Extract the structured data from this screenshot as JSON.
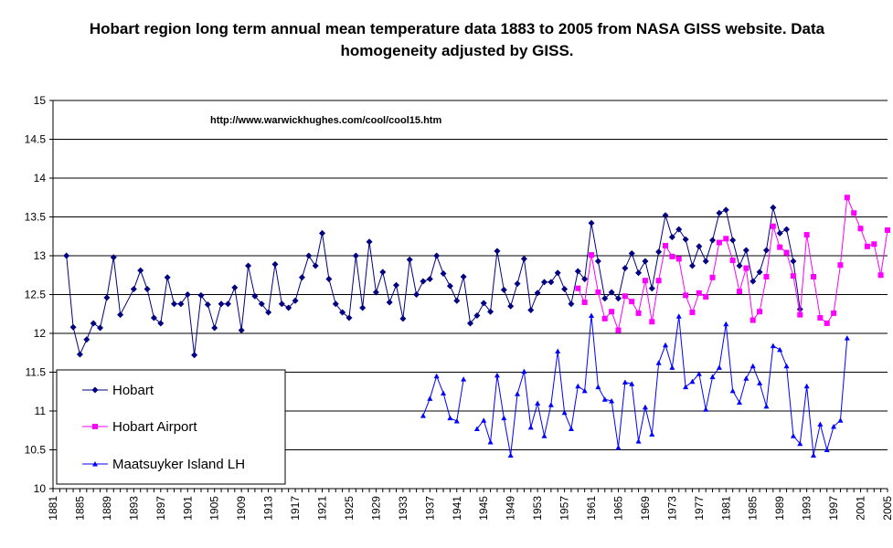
{
  "chart_data": {
    "type": "line",
    "title": "Hobart region long term annual mean temperature data 1883 to 2005 from NASA GISS website.  Data homogeneity adjusted by GISS.",
    "annotation": "http://www.warwickhughes.com/cool/cool15.htm",
    "xlabel": "",
    "ylabel": "",
    "xlim": [
      1881,
      2005
    ],
    "ylim": [
      10,
      15
    ],
    "y_ticks": [
      10,
      10.5,
      11,
      11.5,
      12,
      12.5,
      13,
      13.5,
      14,
      14.5,
      15
    ],
    "y_tick_labels": [
      "10",
      "10.5",
      "11",
      "11.5",
      "12",
      "12.5",
      "13",
      "13.5",
      "14",
      "14.5",
      "15"
    ],
    "x_tick_labels": [
      "1881",
      "1885",
      "1889",
      "1893",
      "1897",
      "1901",
      "1905",
      "1909",
      "1913",
      "1917",
      "1921",
      "1925",
      "1929",
      "1933",
      "1937",
      "1941",
      "1945",
      "1949",
      "1953",
      "1957",
      "1961",
      "1965",
      "1969",
      "1973",
      "1977",
      "1981",
      "1985",
      "1989",
      "1993",
      "1997",
      "2001",
      "2005"
    ],
    "grid": "horizontal",
    "legend_position": "lower-left",
    "series": [
      {
        "name": "Hobart",
        "color": "#000080",
        "marker": "diamond",
        "x": [
          1883,
          1884,
          1885,
          1886,
          1887,
          1888,
          1889,
          1890,
          1891,
          1893,
          1894,
          1895,
          1896,
          1897,
          1898,
          1899,
          1900,
          1901,
          1902,
          1903,
          1904,
          1905,
          1906,
          1907,
          1908,
          1909,
          1910,
          1911,
          1912,
          1913,
          1914,
          1915,
          1916,
          1917,
          1918,
          1919,
          1920,
          1921,
          1922,
          1923,
          1924,
          1925,
          1926,
          1927,
          1928,
          1929,
          1930,
          1931,
          1932,
          1933,
          1934,
          1935,
          1936,
          1937,
          1938,
          1939,
          1940,
          1941,
          1942,
          1943,
          1944,
          1945,
          1946,
          1947,
          1948,
          1949,
          1950,
          1951,
          1952,
          1953,
          1954,
          1955,
          1956,
          1957,
          1958,
          1959,
          1960,
          1961,
          1962,
          1963,
          1964,
          1965,
          1966,
          1967,
          1968,
          1969,
          1970,
          1971,
          1972,
          1973,
          1974,
          1975,
          1976,
          1977,
          1978,
          1979,
          1980,
          1981,
          1982,
          1983,
          1984,
          1985,
          1986,
          1987,
          1988,
          1989,
          1990,
          1991,
          1992
        ],
        "values": [
          13.0,
          12.08,
          11.73,
          11.92,
          12.13,
          12.07,
          12.46,
          12.98,
          12.24,
          12.57,
          12.81,
          12.57,
          12.2,
          12.13,
          12.72,
          12.38,
          12.38,
          12.5,
          11.72,
          12.49,
          12.37,
          12.07,
          12.38,
          12.38,
          12.59,
          12.04,
          12.87,
          12.48,
          12.38,
          12.27,
          12.89,
          12.38,
          12.33,
          12.42,
          12.72,
          13.0,
          12.87,
          13.29,
          12.7,
          12.38,
          12.27,
          12.2,
          13.0,
          12.33,
          13.18,
          12.53,
          12.79,
          12.4,
          12.62,
          12.19,
          12.95,
          12.5,
          12.67,
          12.7,
          13.0,
          12.77,
          12.61,
          12.42,
          12.73,
          12.13,
          12.23,
          12.39,
          12.28,
          13.06,
          12.56,
          12.35,
          12.64,
          12.96,
          12.3,
          12.52,
          12.66,
          12.66,
          12.78,
          12.57,
          12.38,
          12.8,
          12.7,
          13.42,
          12.93,
          12.45,
          12.53,
          12.45,
          12.84,
          13.03,
          12.78,
          12.93,
          12.58,
          13.05,
          13.52,
          13.24,
          13.34,
          13.21,
          12.87,
          13.12,
          12.93,
          13.2,
          13.55,
          13.59,
          13.2,
          12.87,
          13.07,
          12.67,
          12.79,
          13.07,
          13.62,
          13.29,
          13.34,
          12.93,
          12.31
        ]
      },
      {
        "name": "Hobart Airport",
        "color": "#ff00ff",
        "marker": "square",
        "x": [
          1959,
          1960,
          1961,
          1962,
          1963,
          1964,
          1965,
          1966,
          1967,
          1968,
          1969,
          1970,
          1971,
          1972,
          1973,
          1974,
          1975,
          1976,
          1977,
          1978,
          1979,
          1980,
          1981,
          1982,
          1983,
          1984,
          1985,
          1986,
          1987,
          1988,
          1989,
          1990,
          1991,
          1992,
          1993,
          1994,
          1995,
          1996,
          1997,
          1998,
          1999,
          2000,
          2001,
          2002,
          2003,
          2004,
          2005
        ],
        "values": [
          12.58,
          12.4,
          13.01,
          12.53,
          12.19,
          12.28,
          12.04,
          12.48,
          12.41,
          12.26,
          12.68,
          12.15,
          12.68,
          13.13,
          12.99,
          12.96,
          12.49,
          12.27,
          12.52,
          12.47,
          12.72,
          13.17,
          13.22,
          12.94,
          12.54,
          12.84,
          12.17,
          12.28,
          12.73,
          13.38,
          13.11,
          13.04,
          12.74,
          12.24,
          13.27,
          12.73,
          12.2,
          12.13,
          12.26,
          12.88,
          13.75,
          13.55,
          13.35,
          13.12,
          13.15,
          12.75,
          13.33
        ]
      },
      {
        "name": "Maatsuyker Island LH",
        "color": "#0000ff",
        "marker": "triangle",
        "segments": [
          {
            "x": [
              1936,
              1937,
              1938,
              1939,
              1940,
              1941,
              1942
            ],
            "values": [
              10.94,
              11.16,
              11.45,
              11.23,
              10.91,
              10.87,
              11.41
            ]
          },
          {
            "x": [
              1944,
              1945,
              1946,
              1947,
              1948,
              1949,
              1950,
              1951,
              1952,
              1953,
              1954,
              1955,
              1956,
              1957,
              1958,
              1959,
              1960,
              1961,
              1962,
              1963,
              1964,
              1965,
              1966,
              1967,
              1968,
              1969,
              1970,
              1971,
              1972,
              1973,
              1974,
              1975,
              1976,
              1977,
              1978,
              1979,
              1980,
              1981,
              1982,
              1983,
              1984,
              1985,
              1986,
              1987,
              1988,
              1989,
              1990,
              1991,
              1992,
              1993,
              1994,
              1995,
              1996,
              1997,
              1998,
              1999
            ],
            "values": [
              10.77,
              10.88,
              10.6,
              11.46,
              10.91,
              10.43,
              11.22,
              11.51,
              10.79,
              11.1,
              10.68,
              11.08,
              11.77,
              10.98,
              10.77,
              11.32,
              11.26,
              12.23,
              11.31,
              11.15,
              11.13,
              10.53,
              11.37,
              11.35,
              10.61,
              11.05,
              10.7,
              11.62,
              11.85,
              11.56,
              12.22,
              11.31,
              11.38,
              11.48,
              11.02,
              11.44,
              11.56,
              12.12,
              11.26,
              11.11,
              11.42,
              11.58,
              11.36,
              11.06,
              11.84,
              11.79,
              11.58,
              10.68,
              10.58,
              11.32,
              10.43,
              10.83,
              10.5,
              10.8,
              10.88,
              11.94
            ]
          }
        ]
      }
    ]
  }
}
